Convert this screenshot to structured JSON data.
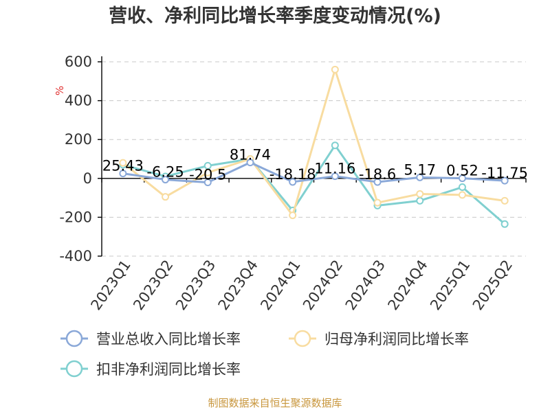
{
  "chart_data": {
    "type": "line",
    "title": "营收、净利同比增长率季度变动情况(%)",
    "unit_label": "%",
    "categories": [
      "2023Q1",
      "2023Q2",
      "2023Q3",
      "2023Q4",
      "2024Q1",
      "2024Q2",
      "2024Q3",
      "2024Q4",
      "2025Q1",
      "2025Q2"
    ],
    "ylim": [
      -400,
      600
    ],
    "yticks": [
      600,
      400,
      200,
      0,
      -200,
      -400
    ],
    "grid": true,
    "legend_position": "bottom",
    "series": [
      {
        "name": "营业总收入同比增长率",
        "color": "#8aa8d8",
        "values": [
          25.43,
          -6.25,
          -20.5,
          81.74,
          -18.18,
          11.16,
          -18.6,
          5.17,
          0.52,
          -11.75
        ],
        "labels": [
          "25.43",
          "-6.25",
          "-20.5",
          "81.74",
          "-18.18",
          "11.16",
          "-18.6",
          "5.17",
          "0.52",
          "-11.75"
        ]
      },
      {
        "name": "归母净利润同比增长率",
        "color": "#f8dca0",
        "values": [
          80,
          -95,
          30,
          100,
          -190,
          560,
          -125,
          -80,
          -85,
          -115
        ]
      },
      {
        "name": "扣非净利润同比增长率",
        "color": "#80d0d0",
        "values": [
          70,
          10,
          65,
          100,
          -165,
          170,
          -140,
          -115,
          -45,
          -235
        ]
      }
    ]
  },
  "footer": {
    "source": "制图数据来自恒生聚源数据库"
  }
}
